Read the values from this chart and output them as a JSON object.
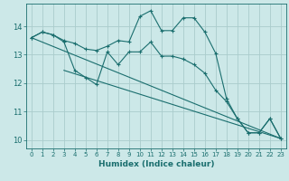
{
  "xlabel": "Humidex (Indice chaleur)",
  "ylabel": "",
  "background_color": "#cce8e8",
  "grid_color": "#aacccc",
  "line_color": "#1a6e6e",
  "xlim": [
    -0.5,
    23.5
  ],
  "ylim": [
    9.7,
    14.8
  ],
  "yticks": [
    10,
    11,
    12,
    13,
    14
  ],
  "xticks": [
    0,
    1,
    2,
    3,
    4,
    5,
    6,
    7,
    8,
    9,
    10,
    11,
    12,
    13,
    14,
    15,
    16,
    17,
    18,
    19,
    20,
    21,
    22,
    23
  ],
  "series": [
    {
      "x": [
        0,
        1,
        2,
        3,
        4,
        5,
        6,
        7,
        8,
        9,
        10,
        11,
        12,
        13,
        14,
        15,
        16,
        17,
        18,
        19,
        20,
        21,
        22,
        23
      ],
      "y": [
        13.6,
        13.8,
        13.7,
        13.5,
        13.4,
        13.2,
        13.15,
        13.3,
        13.5,
        13.45,
        14.35,
        14.55,
        13.85,
        13.85,
        14.3,
        14.3,
        13.8,
        13.05,
        11.45,
        10.75,
        10.25,
        10.25,
        10.75,
        10.05
      ],
      "marker": true
    },
    {
      "x": [
        0,
        1,
        2,
        3,
        4,
        5,
        6,
        7,
        8,
        9,
        10,
        11,
        12,
        13,
        14,
        15,
        16,
        17,
        18,
        19,
        20,
        21,
        22,
        23
      ],
      "y": [
        13.6,
        13.8,
        13.7,
        13.45,
        12.45,
        12.2,
        11.95,
        13.1,
        12.65,
        13.1,
        13.1,
        13.45,
        12.95,
        12.95,
        12.85,
        12.65,
        12.35,
        11.75,
        11.35,
        10.75,
        10.25,
        10.25,
        10.75,
        10.05
      ],
      "marker": true
    },
    {
      "x": [
        0,
        23
      ],
      "y": [
        13.6,
        10.05
      ],
      "marker": false
    },
    {
      "x": [
        3,
        23
      ],
      "y": [
        12.45,
        10.05
      ],
      "marker": false
    }
  ]
}
